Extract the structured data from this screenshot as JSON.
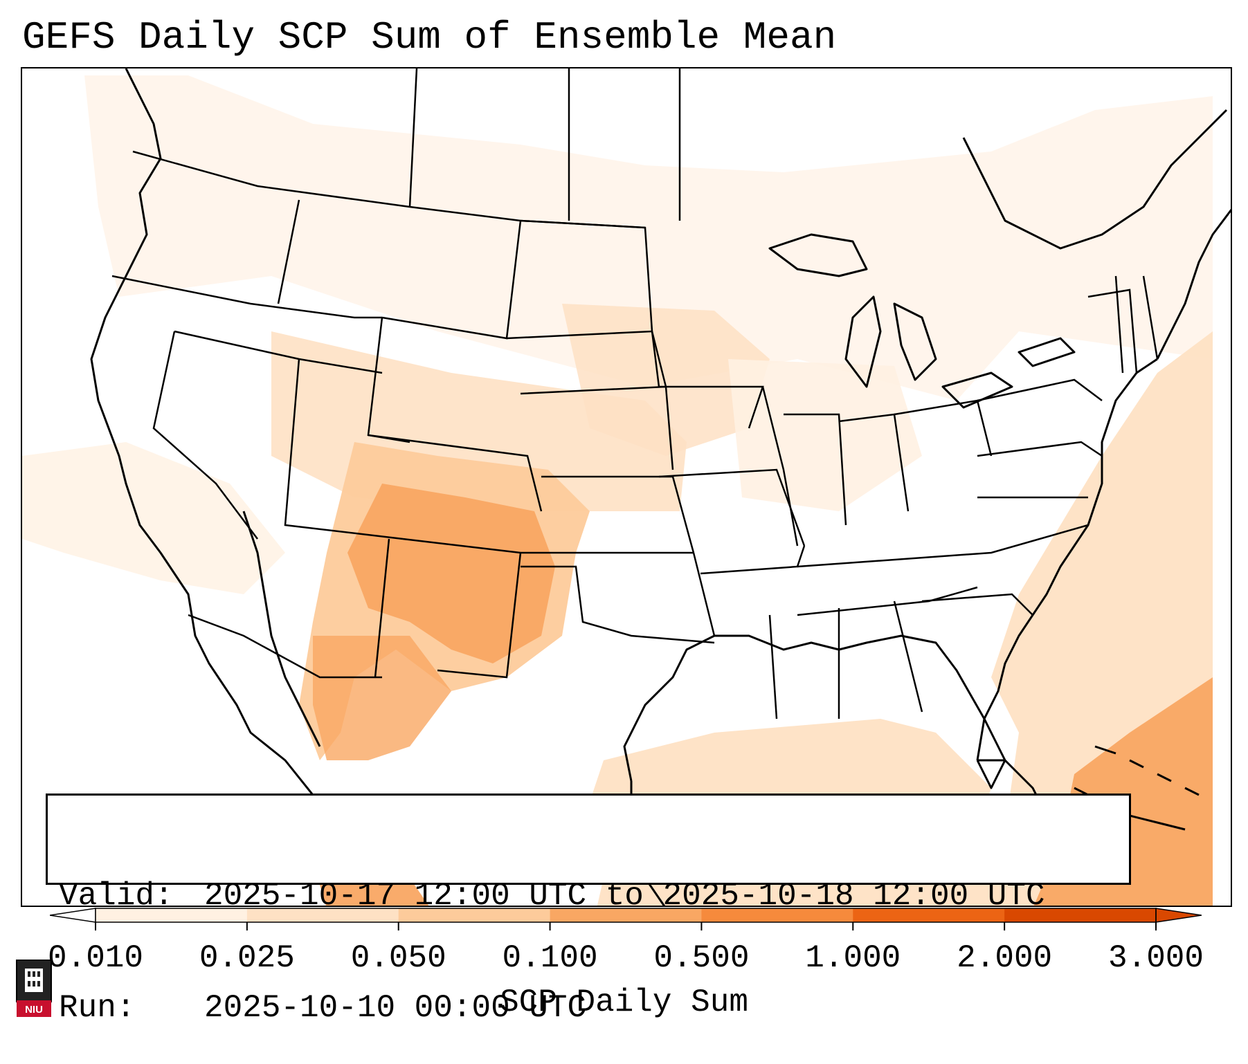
{
  "title": "GEFS Daily SCP Sum of Ensemble Mean",
  "valid_box": {
    "valid_label": "Valid:",
    "valid_value": "2025-10-17 12:00 UTC to 2025-10-18 12:00 UTC",
    "run_label": "Run:",
    "run_value": "2025-10-10 00:00 UTC"
  },
  "colorbar": {
    "label": "SCP Daily Sum",
    "ticks": [
      "0.010",
      "0.025",
      "0.050",
      "0.100",
      "0.500",
      "1.000",
      "2.000",
      "3.000"
    ],
    "colors": [
      "#fff1e2",
      "#fee1c4",
      "#fdcb9b",
      "#f9a763",
      "#f68a3c",
      "#ec6414",
      "#d94801"
    ]
  },
  "logo": {
    "text": "NIU",
    "color": "#c8102e"
  }
}
